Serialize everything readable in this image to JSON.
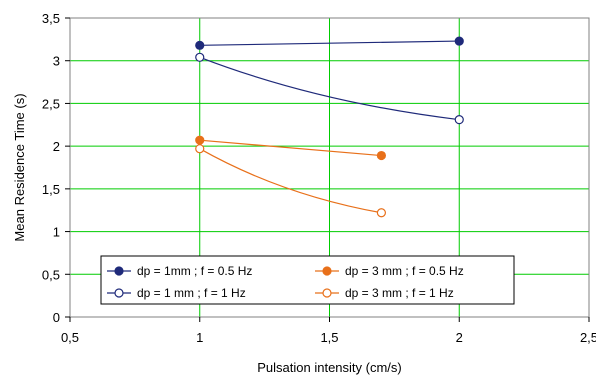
{
  "chart_data": {
    "type": "line",
    "title": "",
    "xlabel": "Pulsation intensity (cm/s)",
    "ylabel": "Mean Residence Time (s)",
    "xlim": [
      0.5,
      2.5
    ],
    "ylim": [
      0,
      3.5
    ],
    "x_ticks": [
      0.5,
      1,
      1.5,
      2,
      2.5
    ],
    "x_tick_labels": [
      "0,5",
      "1",
      "1,5",
      "2",
      "2,5"
    ],
    "y_ticks": [
      0,
      0.5,
      1,
      1.5,
      2,
      2.5,
      3,
      3.5
    ],
    "y_tick_labels": [
      "0",
      "0,5",
      "1",
      "1,5",
      "2",
      "2,5",
      "3",
      "3,5"
    ],
    "grid": "vertical and horizontal, green",
    "grid_color": "#00cc00",
    "legend_position": "bottom-center",
    "series": [
      {
        "name": "dp = 1mm ; f = 0.5 Hz",
        "color": "#1f2a7a",
        "marker": "filled",
        "x": [
          1,
          2
        ],
        "y": [
          3.18,
          3.23
        ]
      },
      {
        "name": "dp = 1 mm ; f = 1 Hz",
        "color": "#1f2a7a",
        "marker": "open",
        "x": [
          1,
          2
        ],
        "y": [
          3.04,
          2.31
        ]
      },
      {
        "name": "dp = 3 mm ; f = 0.5 Hz",
        "color": "#e8701a",
        "marker": "filled",
        "x": [
          1,
          1.7
        ],
        "y": [
          2.07,
          1.89
        ]
      },
      {
        "name": "dp = 3 mm ; f = 1 Hz",
        "color": "#e8701a",
        "marker": "open",
        "x": [
          1,
          1.7
        ],
        "y": [
          1.97,
          1.22
        ]
      }
    ]
  }
}
